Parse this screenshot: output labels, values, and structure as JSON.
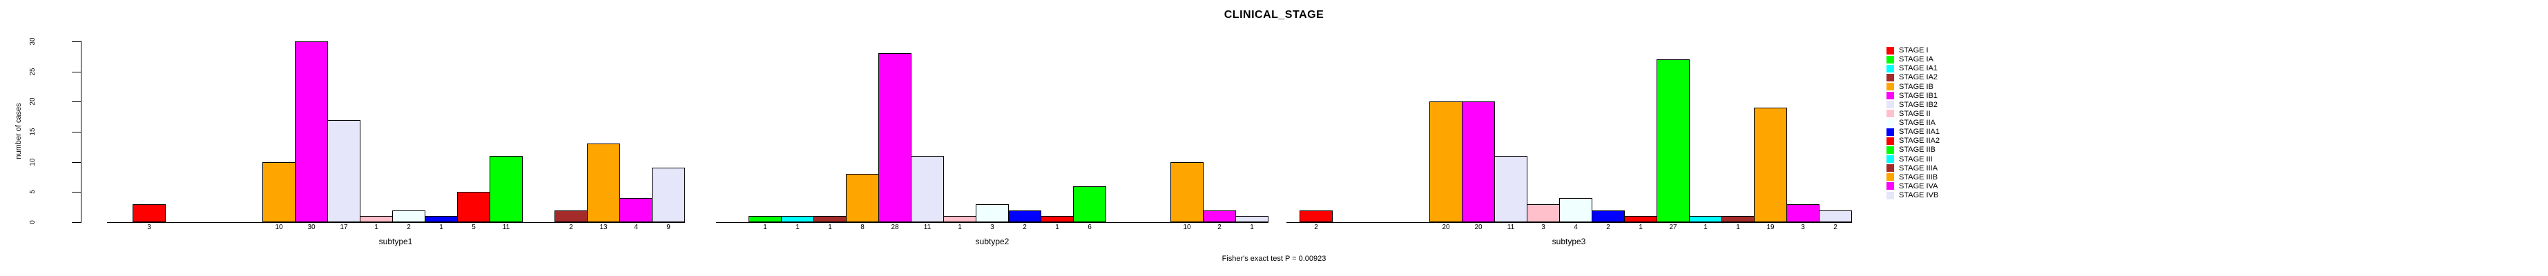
{
  "header": {
    "title": "CLINICAL_STAGE"
  },
  "footer": {
    "annotation": "Fisher's exact test P = 0.00923"
  },
  "y_axis": {
    "label": "number of cases",
    "ticks": [
      0,
      5,
      10,
      15,
      20,
      25,
      30
    ]
  },
  "x_axis": {
    "group_labels": [
      "subtype1",
      "subtype2",
      "subtype3"
    ]
  },
  "palette": [
    "#FF0000",
    "#00FF00",
    "#00FFFF",
    "#A52A2A",
    "#FFA500",
    "#FF00FF",
    "#E6E6FA",
    "#FFC0CB",
    "#F0FFFF",
    "#0000FF"
  ],
  "legend": {
    "entries": [
      {
        "label": "STAGE I",
        "color": "#FF0000"
      },
      {
        "label": "STAGE IA",
        "color": "#00FF00"
      },
      {
        "label": "STAGE IA1",
        "color": "#00FFFF"
      },
      {
        "label": "STAGE IA2",
        "color": "#A52A2A"
      },
      {
        "label": "STAGE IB",
        "color": "#FFA500"
      },
      {
        "label": "STAGE IB1",
        "color": "#FF00FF"
      },
      {
        "label": "STAGE IB2",
        "color": "#E6E6FA"
      },
      {
        "label": "STAGE II",
        "color": "#FFC0CB"
      },
      {
        "label": "STAGE IIA",
        "color": "#F0FFFF"
      },
      {
        "label": "STAGE IIA1",
        "color": "#0000FF"
      },
      {
        "label": "STAGE IIA2",
        "color": "#FF0000"
      },
      {
        "label": "STAGE IIB",
        "color": "#00FF00"
      },
      {
        "label": "STAGE III",
        "color": "#00FFFF"
      },
      {
        "label": "STAGE IIIA",
        "color": "#A52A2A"
      },
      {
        "label": "STAGE IIIB",
        "color": "#FFA500"
      },
      {
        "label": "STAGE IVA",
        "color": "#FF00FF"
      },
      {
        "label": "STAGE IVB",
        "color": "#E6E6FA"
      }
    ]
  },
  "chart_data": {
    "type": "bar",
    "title": "CLINICAL_STAGE",
    "ylabel": "number of cases",
    "xlabel": "",
    "ylim": [
      0,
      30
    ],
    "yticks": [
      0,
      5,
      10,
      15,
      20,
      25,
      30
    ],
    "grid": false,
    "legend_position": "right",
    "bar_value_labels": true,
    "annotation": "Fisher's exact test P = 0.00923",
    "categories": [
      "STAGE I",
      "STAGE IA",
      "STAGE IA1",
      "STAGE IA2",
      "STAGE IB",
      "STAGE IB1",
      "STAGE IB2",
      "STAGE II",
      "STAGE IIA",
      "STAGE IIA1",
      "STAGE IIA2",
      "STAGE IIB",
      "STAGE III",
      "STAGE IIIA",
      "STAGE IIIB",
      "STAGE IVA",
      "STAGE IVB"
    ],
    "category_colors": [
      "#FF0000",
      "#00FF00",
      "#00FFFF",
      "#A52A2A",
      "#FFA500",
      "#FF00FF",
      "#E6E6FA",
      "#FFC0CB",
      "#F0FFFF",
      "#0000FF",
      "#FF0000",
      "#00FF00",
      "#00FFFF",
      "#A52A2A",
      "#FFA500",
      "#FF00FF",
      "#E6E6FA"
    ],
    "series": [
      {
        "name": "subtype1",
        "values": [
          3,
          0,
          0,
          0,
          10,
          30,
          17,
          1,
          2,
          1,
          5,
          11,
          0,
          2,
          13,
          4,
          9
        ]
      },
      {
        "name": "subtype2",
        "values": [
          0,
          1,
          1,
          1,
          8,
          28,
          11,
          1,
          3,
          2,
          1,
          6,
          0,
          0,
          10,
          2,
          1
        ]
      },
      {
        "name": "subtype3",
        "values": [
          2,
          0,
          0,
          0,
          20,
          20,
          11,
          3,
          4,
          2,
          1,
          27,
          1,
          1,
          19,
          3,
          2
        ]
      }
    ]
  }
}
